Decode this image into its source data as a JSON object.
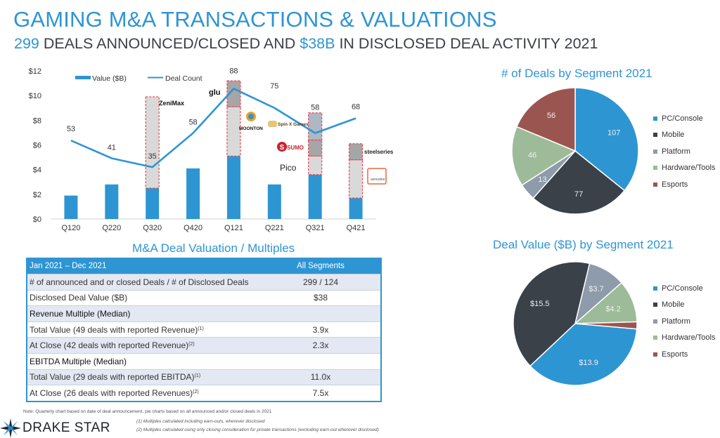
{
  "header": {
    "title": "GAMING M&A TRANSACTIONS & VALUATIONS",
    "subtitle_prefix_highlight": "299",
    "subtitle_mid": " DEALS ANNOUNCED/CLOSED AND ",
    "subtitle_mid_highlight": "$38B",
    "subtitle_suffix": " IN DISCLOSED DEAL ACTIVITY 2021"
  },
  "colors": {
    "accent": "#2e95d3",
    "bar_blue": "#2e95d3",
    "light_gray": "#d9d9d9",
    "dark_gray": "#a6a6a6",
    "slate": "#aeb7c4",
    "dashed_red": "#e8454c",
    "pc_console": "#2e95d3",
    "mobile": "#3a4149",
    "platform": "#8d9bab",
    "hardware_tools": "#9dbb98",
    "esports": "#9b5550"
  },
  "logos": {
    "zenimax": "ZeniMax",
    "glu": "glu",
    "moonton": "MOONTON",
    "spin": "Spin X Games",
    "sumo": "SUMO",
    "pico": "Pico",
    "steelseries": "steelseries",
    "asmodee": "asmodee"
  },
  "chart_data": [
    {
      "type": "bar",
      "title": "",
      "xlabel": "",
      "ylabel": "",
      "categories": [
        "Q120",
        "Q220",
        "Q320",
        "Q420",
        "Q121",
        "Q221",
        "Q321",
        "Q421"
      ],
      "ylim": [
        0,
        12
      ],
      "yticks": [
        "$0",
        "$2",
        "$4",
        "$6",
        "$8",
        "$10",
        "$12"
      ],
      "legend": [
        "Value ($B)",
        "Deal Count"
      ],
      "legend_position": "top",
      "series": [
        {
          "name": "Value ($B)",
          "kind": "bar",
          "values": [
            1.9,
            2.8,
            2.5,
            4.1,
            5.1,
            2.8,
            3.6,
            1.7
          ]
        },
        {
          "name": "Deal Count",
          "kind": "line",
          "values": [
            53,
            41,
            35,
            58,
            88,
            75,
            58,
            68
          ],
          "secondary_axis_max": 100
        }
      ],
      "highlighted_deals": [
        {
          "quarter": "Q320",
          "segments": [
            {
              "to": 9.9,
              "style": "light",
              "logo": "zenimax"
            }
          ]
        },
        {
          "quarter": "Q121",
          "segments": [
            {
              "to": 9.1,
              "style": "light",
              "logo": "moonton"
            },
            {
              "to": 11.2,
              "style": "dark",
              "logo": "glu"
            }
          ]
        },
        {
          "quarter": "Q321",
          "segments": [
            {
              "to": 5.1,
              "style": "light",
              "logo": "pico"
            },
            {
              "to": 6.4,
              "style": "dark",
              "logo": "sumo"
            },
            {
              "to": 8.6,
              "style": "slate",
              "logo": "spin"
            }
          ]
        },
        {
          "quarter": "Q421",
          "segments": [
            {
              "to": 4.8,
              "style": "light",
              "logo": "asmodee"
            },
            {
              "to": 6.1,
              "style": "dark",
              "logo": "steelseries"
            }
          ]
        }
      ]
    },
    {
      "type": "pie",
      "title": "# of Deals by Segment 2021",
      "legend_position": "right",
      "categories": [
        "PC/Console",
        "Mobile",
        "Platform",
        "Hardware/Tools",
        "Esports"
      ],
      "values": [
        107,
        77,
        13,
        46,
        56
      ],
      "labels": [
        "107",
        "77",
        "13",
        "46",
        "56"
      ]
    },
    {
      "type": "pie",
      "title": "Deal Value ($B) by Segment 2021",
      "legend_position": "right",
      "categories": [
        "PC/Console",
        "Mobile",
        "Platform",
        "Hardware/Tools",
        "Esports"
      ],
      "values": [
        13.9,
        15.5,
        3.7,
        4.2,
        0.7
      ],
      "labels": [
        "$13.9",
        "$15.5",
        "$3.7",
        "$4.2",
        ""
      ]
    }
  ],
  "table": {
    "title": "M&A Deal Valuation / Multiples",
    "header": {
      "period": "Jan 2021 – Dec 2021",
      "column": "All Segments"
    },
    "rows": [
      {
        "label": "# of announced and or closed Deals / # of Disclosed Deals",
        "sup": "",
        "value": "299 / 124",
        "style": "shade"
      },
      {
        "label": "Disclosed Deal Value ($B)",
        "sup": "",
        "value": "$38",
        "style": "plain"
      },
      {
        "label": "Revenue Multiple (Median)",
        "sup": "",
        "value": "",
        "style": "shade sect"
      },
      {
        "label": "Total Value (49 deals with reported Revenue)",
        "sup": "(1)",
        "value": "3.9x",
        "style": "plain"
      },
      {
        "label": "At Close (42 deals with reported Revenue)",
        "sup": "(2)",
        "value": "2.3x",
        "style": "shade"
      },
      {
        "label": "EBITDA Multiple (Median)",
        "sup": "",
        "value": "",
        "style": "plain sect"
      },
      {
        "label": "Total Value (29 deals with reported EBITDA)",
        "sup": "(1)",
        "value": "11.0x",
        "style": "shade"
      },
      {
        "label": "At Close (26 deals with reported Revenues)",
        "sup": "(2)",
        "value": "7.5x",
        "style": "plain"
      }
    ]
  },
  "footer": {
    "note": "Note: Quarterly chart based on date of deal announcement, pie charts based on all announced and/or closed deals in 2021",
    "footnote1": "(1) Multiples calculated including earn-outs, wherever disclosed",
    "footnote2": "(2) Multiples calculated using only closing consideration for private transactions (excluding earn-out wherever disclosed)",
    "brand": "DRAKE STAR"
  }
}
